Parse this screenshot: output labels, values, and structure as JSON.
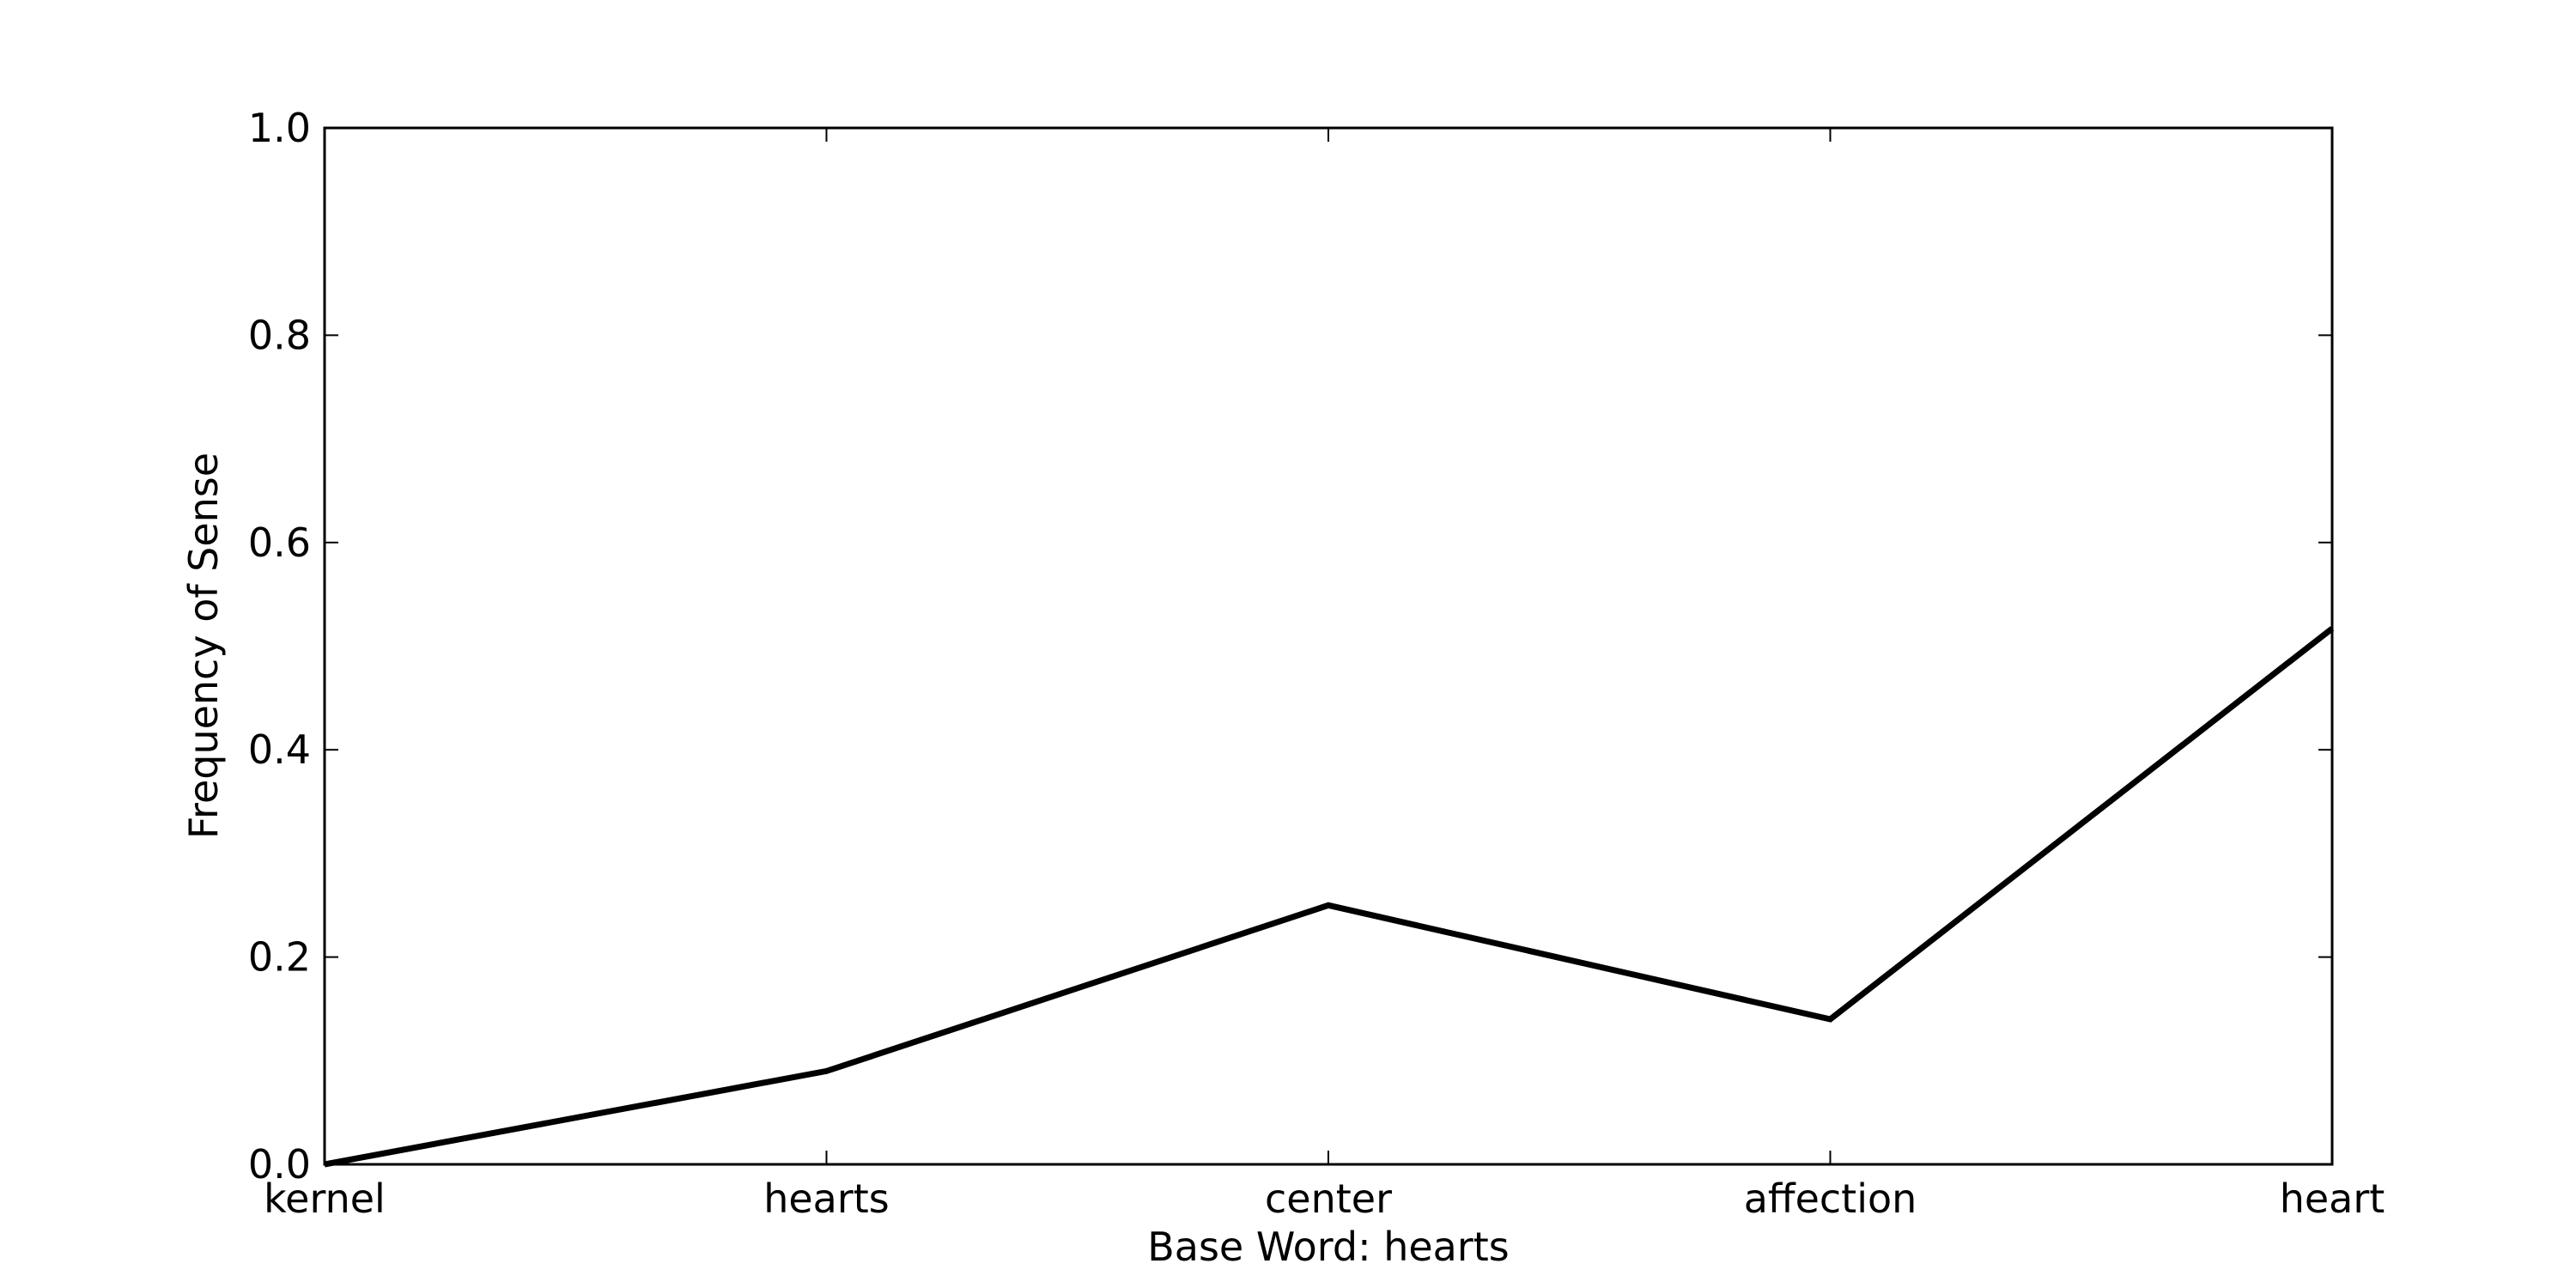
{
  "chart_data": {
    "type": "line",
    "categories": [
      "kernel",
      "hearts",
      "center",
      "affection",
      "heart"
    ],
    "series": [
      {
        "values": [
          0.0,
          0.09,
          0.25,
          0.14,
          0.517
        ]
      }
    ],
    "xlabel": "Base Word: hearts",
    "ylabel": "Frequency of Sense",
    "ylim": [
      0,
      1.0
    ],
    "yticks": [
      "0.0",
      "0.2",
      "0.4",
      "0.6",
      "0.8",
      "1.0"
    ],
    "grid": false,
    "legend": "none",
    "line_color": "#000000"
  }
}
